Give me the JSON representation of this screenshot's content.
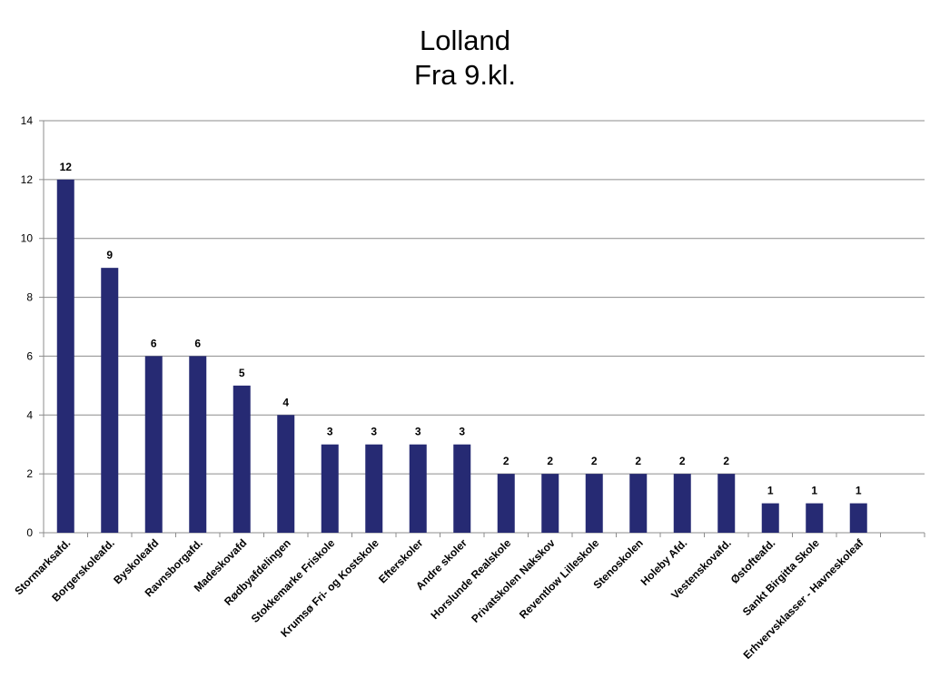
{
  "chart_data": {
    "type": "bar",
    "title": "Lolland",
    "subtitle": "Fra 9.kl.",
    "categories": [
      "Stormarksafd.",
      "Borgerskoleafd.",
      "Byskoleafd",
      "Ravnsborgafd.",
      "Madeskovafd",
      "Rødbyafdelingen",
      "Stokkemarke Friskole",
      "Krumsø Fri- og Kostskole",
      "Efterskoler",
      "Andre skoler",
      "Horslunde Realskole",
      "Privatskolen Nakskov",
      "Reventlow Lilleskole",
      "Stenoskolen",
      "Holeby Afd.",
      "Vestenskovafd.",
      "Østofteafd.",
      "Sankt Birgitta Skole",
      "Erhvervsklasser - Havneskoleaf"
    ],
    "values": [
      12,
      9,
      6,
      6,
      5,
      4,
      3,
      3,
      3,
      3,
      2,
      2,
      2,
      2,
      2,
      2,
      1,
      1,
      1
    ],
    "ylim": [
      0,
      14
    ],
    "yticks": [
      0,
      2,
      4,
      6,
      8,
      10,
      12,
      14
    ],
    "data_labels": true,
    "grid": true,
    "legend": "none",
    "bar_color": "#262A73",
    "grid_color": "#8C8C8C"
  }
}
